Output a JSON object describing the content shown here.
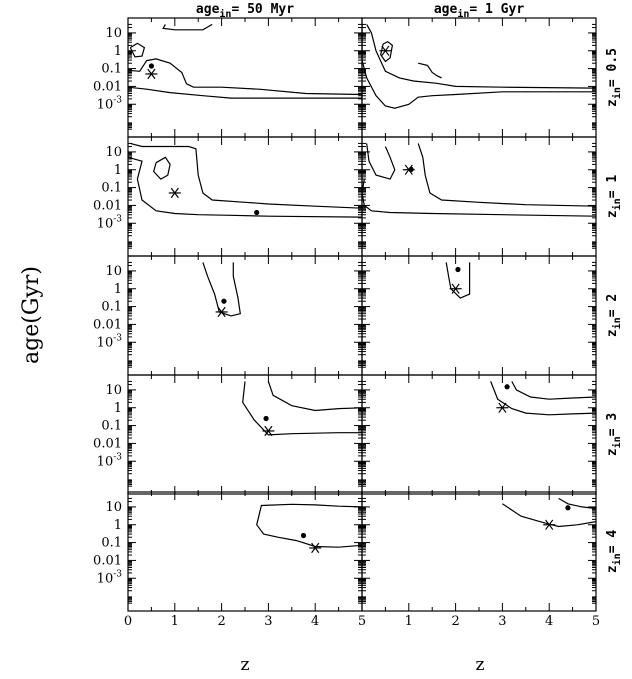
{
  "chart_data": {
    "type": "contour-grid",
    "ylabel": "age(Gyr)",
    "xlabel": "z",
    "column_titles": [
      {
        "text": "age",
        "sub": "in",
        "rest": "= 50 Myr"
      },
      {
        "text": "age",
        "sub": "in",
        "rest": "= 1 Gyr"
      }
    ],
    "row_labels": [
      {
        "text": "z",
        "sub": "in",
        "rest": "= 0.5"
      },
      {
        "text": "z",
        "sub": "in",
        "rest": "= 1"
      },
      {
        "text": "z",
        "sub": "in",
        "rest": "= 2"
      },
      {
        "text": "z",
        "sub": "in",
        "rest": "= 3"
      },
      {
        "text": "z",
        "sub": "in",
        "rest": "= 4"
      }
    ],
    "x_range": [
      0,
      5
    ],
    "y_scale": "log",
    "y_range_log10": [
      -4.5,
      1.5
    ],
    "x_ticks": [
      0,
      1,
      2,
      3,
      4,
      5
    ],
    "y_ticks": [
      {
        "value": 10,
        "label": "10"
      },
      {
        "value": 1,
        "label": "1"
      },
      {
        "value": 0.1,
        "label": "0.1"
      },
      {
        "value": 0.01,
        "label": "0.01"
      },
      {
        "value": 0.001,
        "label": "10",
        "sup": "-3"
      }
    ],
    "panels": [
      {
        "row": 0,
        "col": 0,
        "z_in": 0.5,
        "age_in": 0.05,
        "best_fit": [
          0.5,
          0.14
        ],
        "contours": [
          [
            [
              0.05,
              1.5
            ],
            [
              0.2,
              2.6
            ],
            [
              0.35,
              1.5
            ],
            [
              0.3,
              0.5
            ],
            [
              0.15,
              0.45
            ],
            [
              0.05,
              1.5
            ]
          ],
          [
            [
              0.0,
              0.08
            ],
            [
              0.25,
              0.07
            ],
            [
              0.4,
              0.28
            ],
            [
              0.6,
              0.35
            ],
            [
              0.9,
              0.2
            ],
            [
              1.15,
              0.06
            ],
            [
              1.25,
              0.014
            ],
            [
              1.4,
              0.009
            ],
            [
              2.0,
              0.009
            ],
            [
              2.8,
              0.007
            ],
            [
              3.8,
              0.004
            ],
            [
              5.0,
              0.0035
            ],
            [
              5.0,
              0.0022
            ],
            [
              2.2,
              0.0022
            ],
            [
              1.6,
              0.003
            ],
            [
              0.9,
              0.0045
            ],
            [
              0.4,
              0.007
            ],
            [
              0.0,
              0.009
            ]
          ],
          [
            [
              0.8,
              30
            ],
            [
              0.75,
              18
            ],
            [
              1.0,
              15
            ],
            [
              1.6,
              15
            ],
            [
              1.8,
              30
            ]
          ]
        ]
      },
      {
        "row": 0,
        "col": 1,
        "z_in": 0.5,
        "age_in": 1,
        "best_fit": null,
        "contours": [
          [
            [
              0.45,
              2.4
            ],
            [
              0.55,
              3.2
            ],
            [
              0.65,
              2.0
            ],
            [
              0.6,
              0.4
            ],
            [
              0.5,
              0.25
            ],
            [
              0.4,
              0.6
            ],
            [
              0.45,
              2.4
            ]
          ],
          [
            [
              0.1,
              30
            ],
            [
              0.2,
              10
            ],
            [
              0.3,
              1
            ],
            [
              0.5,
              0.07
            ],
            [
              0.8,
              0.03
            ],
            [
              1.1,
              0.02
            ],
            [
              1.6,
              0.015
            ],
            [
              2.0,
              0.01
            ],
            [
              3.0,
              0.009
            ],
            [
              5.0,
              0.008
            ],
            [
              5.0,
              0.005
            ],
            [
              3.0,
              0.005
            ],
            [
              2.0,
              0.0035
            ],
            [
              1.5,
              0.003
            ],
            [
              1.2,
              0.0025
            ],
            [
              1.0,
              0.001
            ],
            [
              0.7,
              0.0006
            ],
            [
              0.5,
              0.0008
            ],
            [
              0.3,
              0.003
            ],
            [
              0.1,
              0.03
            ],
            [
              0.0,
              0.3
            ],
            [
              0.0,
              30
            ]
          ],
          [
            [
              1.2,
              0.2
            ],
            [
              1.4,
              0.15
            ],
            [
              1.5,
              0.06
            ],
            [
              1.6,
              0.04
            ],
            [
              1.7,
              0.03
            ]
          ]
        ]
      },
      {
        "row": 1,
        "col": 0,
        "z_in": 1,
        "age_in": 0.05,
        "best_fit": [
          2.75,
          0.004
        ],
        "contours": [
          [
            [
              0.6,
              2.5
            ],
            [
              0.8,
              5
            ],
            [
              0.9,
              2
            ],
            [
              0.85,
              0.5
            ],
            [
              0.7,
              0.3
            ],
            [
              0.55,
              0.8
            ],
            [
              0.6,
              2.5
            ]
          ],
          [
            [
              0.0,
              5
            ],
            [
              0.3,
              3
            ],
            [
              0.2,
              0.3
            ],
            [
              0.3,
              0.02
            ],
            [
              0.6,
              0.005
            ],
            [
              1.0,
              0.0035
            ],
            [
              1.5,
              0.003
            ],
            [
              2.2,
              0.0028
            ],
            [
              3.0,
              0.0025
            ],
            [
              5.0,
              0.0022
            ]
          ],
          [
            [
              0.05,
              30
            ],
            [
              0.3,
              20
            ],
            [
              1.3,
              20
            ],
            [
              1.45,
              15
            ],
            [
              1.5,
              0.5
            ],
            [
              1.6,
              0.05
            ],
            [
              1.8,
              0.02
            ],
            [
              2.5,
              0.015
            ],
            [
              3.0,
              0.012
            ],
            [
              4.0,
              0.009
            ],
            [
              5.0,
              0.007
            ]
          ]
        ]
      },
      {
        "row": 1,
        "col": 1,
        "z_in": 1,
        "age_in": 1,
        "best_fit": [
          1.05,
          1.05
        ],
        "contours": [
          [
            [
              0.1,
              30
            ],
            [
              0.15,
              3
            ],
            [
              0.3,
              0.5
            ],
            [
              0.6,
              0.3
            ],
            [
              0.7,
              1
            ],
            [
              0.6,
              5
            ],
            [
              0.5,
              20
            ]
          ],
          [
            [
              0.05,
              0.3
            ],
            [
              0.0,
              0.05
            ],
            [
              0.05,
              0.01
            ],
            [
              0.2,
              0.005
            ],
            [
              0.6,
              0.004
            ],
            [
              1.5,
              0.0035
            ],
            [
              3.0,
              0.003
            ],
            [
              5.0,
              0.0025
            ]
          ],
          [
            [
              1.2,
              30
            ],
            [
              1.3,
              5
            ],
            [
              1.35,
              0.5
            ],
            [
              1.45,
              0.05
            ],
            [
              1.7,
              0.02
            ],
            [
              2.5,
              0.015
            ],
            [
              3.5,
              0.011
            ],
            [
              5.0,
              0.009
            ]
          ]
        ]
      },
      {
        "row": 2,
        "col": 0,
        "z_in": 2,
        "age_in": 0.05,
        "best_fit": [
          2.05,
          0.2
        ],
        "contours": [
          [
            [
              1.6,
              30
            ],
            [
              1.7,
              5
            ],
            [
              1.85,
              0.5
            ],
            [
              1.95,
              0.05
            ],
            [
              2.2,
              0.03
            ],
            [
              2.4,
              0.04
            ],
            [
              2.35,
              0.3
            ],
            [
              2.25,
              5
            ],
            [
              2.25,
              30
            ]
          ]
        ]
      },
      {
        "row": 2,
        "col": 1,
        "z_in": 2,
        "age_in": 1,
        "best_fit": [
          2.05,
          12
        ],
        "contours": [
          [
            [
              1.8,
              30
            ],
            [
              1.85,
              5
            ],
            [
              1.9,
              1
            ],
            [
              2.1,
              0.3
            ],
            [
              2.3,
              0.5
            ],
            [
              2.3,
              5
            ],
            [
              2.3,
              30
            ]
          ]
        ]
      },
      {
        "row": 3,
        "col": 0,
        "z_in": 3,
        "age_in": 0.05,
        "best_fit": [
          2.95,
          0.25
        ],
        "contours": [
          [
            [
              2.5,
              30
            ],
            [
              2.45,
              2
            ],
            [
              2.7,
              0.2
            ],
            [
              3.0,
              0.03
            ],
            [
              3.5,
              0.035
            ],
            [
              4.5,
              0.04
            ],
            [
              5.0,
              0.04
            ]
          ],
          [
            [
              3.0,
              30
            ],
            [
              3.1,
              5
            ],
            [
              3.5,
              1.3
            ],
            [
              4.0,
              0.7
            ],
            [
              4.5,
              0.9
            ],
            [
              5.0,
              1
            ]
          ]
        ]
      },
      {
        "row": 3,
        "col": 1,
        "z_in": 3,
        "age_in": 1,
        "best_fit": [
          3.1,
          15
        ],
        "contours": [
          [
            [
              2.75,
              30
            ],
            [
              2.9,
              3
            ],
            [
              3.2,
              0.9
            ],
            [
              3.5,
              0.5
            ],
            [
              4.0,
              0.4
            ],
            [
              4.5,
              0.45
            ],
            [
              5.0,
              0.5
            ]
          ],
          [
            [
              3.2,
              30
            ],
            [
              3.3,
              10
            ],
            [
              3.6,
              4
            ],
            [
              4.0,
              3
            ],
            [
              4.5,
              3.5
            ],
            [
              5.0,
              4
            ]
          ]
        ]
      },
      {
        "row": 4,
        "col": 0,
        "z_in": 4,
        "age_in": 0.05,
        "best_fit": [
          3.75,
          0.25
        ],
        "contours": [
          [
            [
              5.0,
              10
            ],
            [
              4.5,
              11
            ],
            [
              4.0,
              13
            ],
            [
              3.5,
              14
            ],
            [
              2.85,
              12
            ],
            [
              2.75,
              1
            ],
            [
              2.9,
              0.3
            ],
            [
              3.2,
              0.2
            ],
            [
              3.6,
              0.13
            ],
            [
              4.0,
              0.06
            ],
            [
              4.5,
              0.055
            ],
            [
              5.0,
              0.07
            ]
          ]
        ]
      },
      {
        "row": 4,
        "col": 1,
        "z_in": 4,
        "age_in": 1,
        "best_fit": [
          4.4,
          9
        ],
        "contours": [
          [
            [
              3.0,
              15
            ],
            [
              3.4,
              3
            ],
            [
              3.8,
              1.5
            ],
            [
              4.2,
              0.8
            ],
            [
              4.6,
              1.0
            ],
            [
              5.0,
              1.5
            ]
          ],
          [
            [
              4.2,
              30
            ],
            [
              4.4,
              15
            ],
            [
              4.7,
              10
            ],
            [
              5.0,
              8
            ]
          ]
        ]
      }
    ]
  }
}
